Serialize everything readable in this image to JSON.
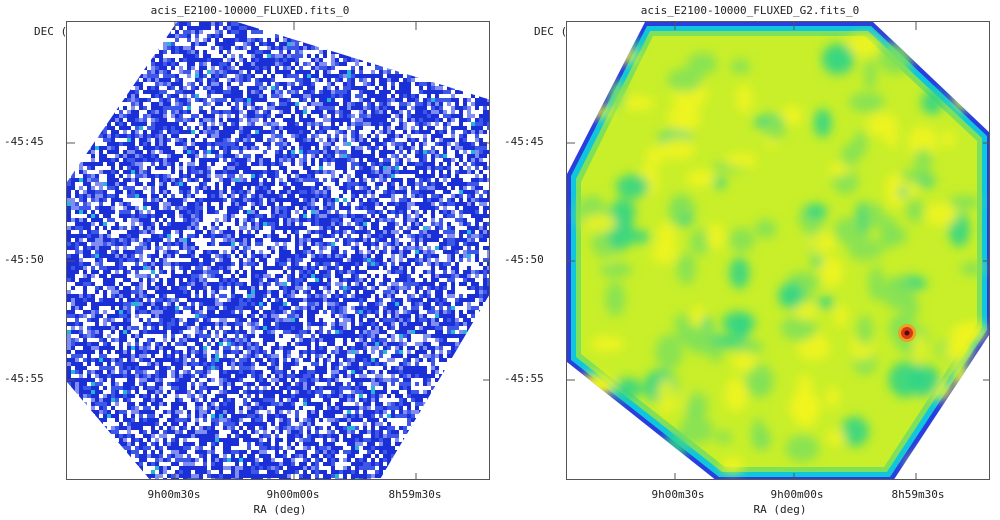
{
  "panels": [
    {
      "title": "acis_E2100-10000_FLUXED.fits_0",
      "ylabel": "DEC (deg)",
      "xlabel": "RA (deg)",
      "yticks": [
        "-45:45",
        "-45:50",
        "-45:55"
      ],
      "xticks": [
        "9h00m30s",
        "9h00m00s",
        "8h59m30s"
      ]
    },
    {
      "title": "acis_E2100-10000_FLUXED_G2.fits_0",
      "ylabel": "DEC (deg)",
      "xlabel": "RA (deg)",
      "yticks": [
        "-45:45",
        "-45:50",
        "-45:55"
      ],
      "xticks": [
        "9h00m30s",
        "9h00m00s",
        "8h59m30s"
      ]
    }
  ],
  "colors": {
    "raw_dark": "#1a2fd6",
    "raw_mid": "#3d57e8",
    "raw_light": "#7f8ef0",
    "raw_cyan": "#26b5d9",
    "smooth_yellow": "#f2f51f",
    "smooth_green": "#7fe05a",
    "smooth_teal": "#2cd38a",
    "smooth_cyan": "#10c6dc",
    "smooth_blue": "#2a3ee0",
    "source_red": "#d4391a"
  }
}
